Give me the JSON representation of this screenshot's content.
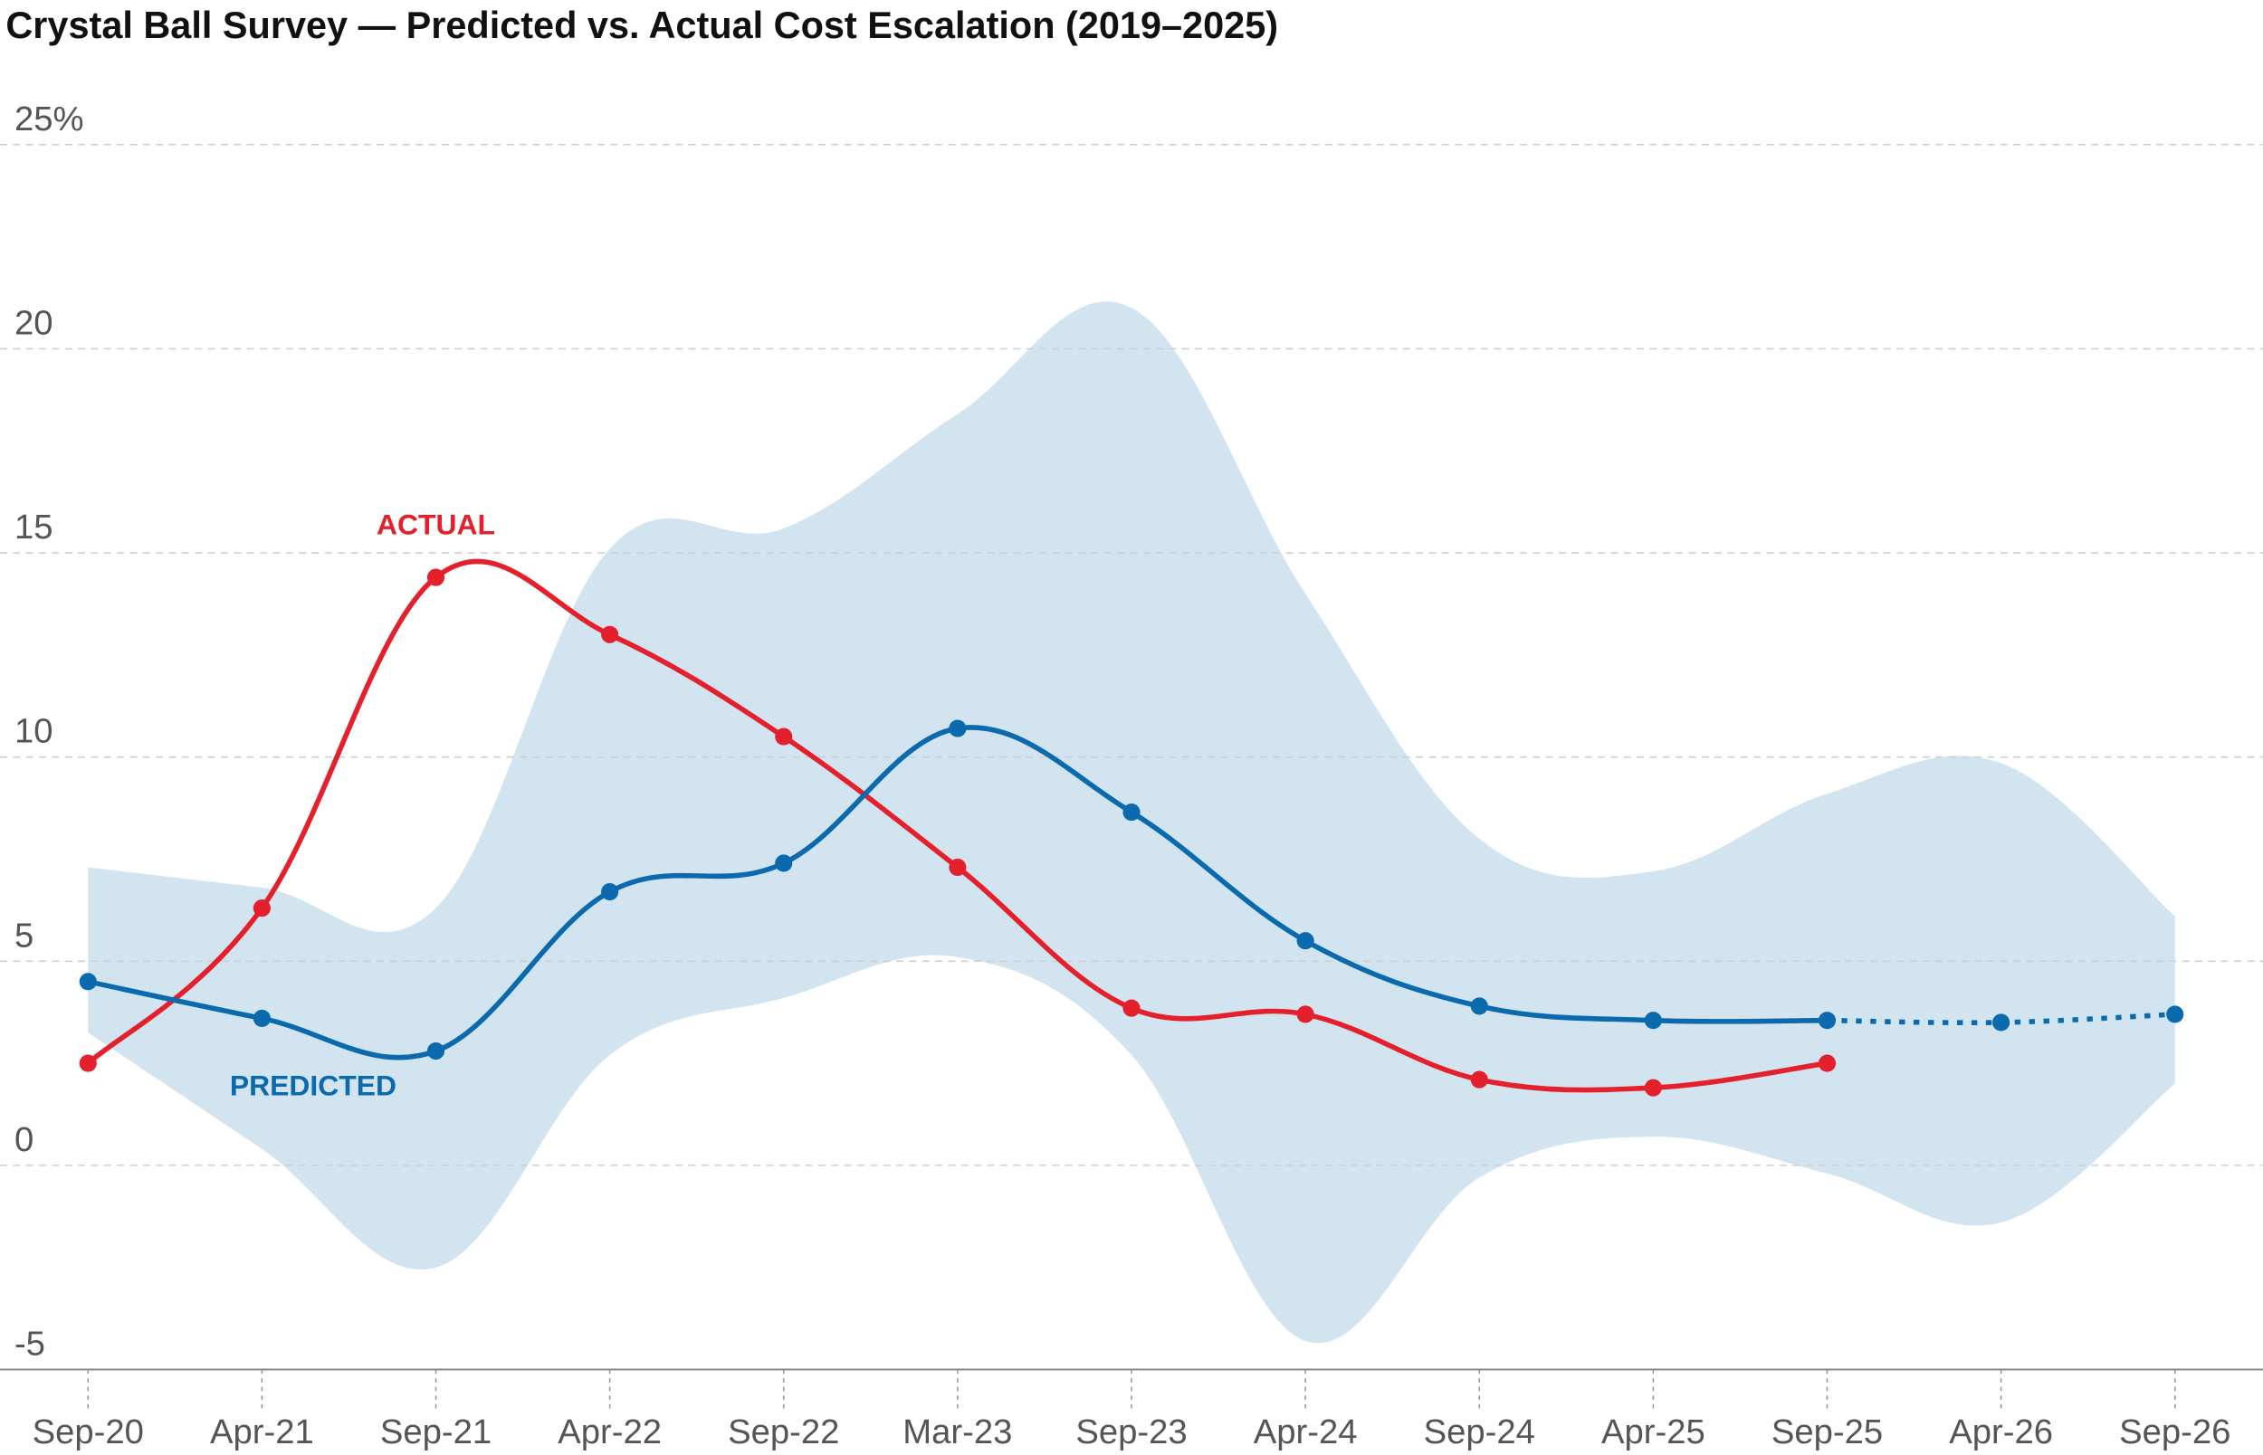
{
  "chart_data": {
    "type": "line",
    "title": "Crystal Ball Survey — Predicted vs. Actual Cost Escalation (2019–2025)",
    "categories": [
      "Sep-20",
      "Apr-21",
      "Sep-21",
      "Apr-22",
      "Sep-22",
      "Mar-23",
      "Sep-23",
      "Apr-24",
      "Sep-24",
      "Apr-25",
      "Sep-25",
      "Apr-26",
      "Sep-26"
    ],
    "ylim": [
      -5,
      26.5
    ],
    "yticks": [
      -5,
      0,
      5,
      10,
      15,
      20,
      {
        "value": 25,
        "label": "25%"
      }
    ],
    "grid": true,
    "band": {
      "color": "#d2e4f0",
      "upper": [
        7.3,
        6.8,
        6.3,
        15.1,
        15.6,
        18.4,
        21.0,
        14.0,
        8.0,
        7.2,
        9.1,
        9.85,
        6.1
      ],
      "lower": [
        3.25,
        0.4,
        -2.5,
        2.7,
        4.1,
        5.1,
        2.7,
        -4.3,
        -0.3,
        0.7,
        -0.2,
        -1.4,
        2.0
      ]
    },
    "series": [
      {
        "name": "ACTUAL",
        "color": "#e3202b",
        "values": [
          2.5,
          6.3,
          14.4,
          13.0,
          10.5,
          7.3,
          3.85,
          3.7,
          2.1,
          1.9,
          2.5,
          null,
          null
        ]
      },
      {
        "name": "PREDICTED",
        "color": "#0a6aad",
        "values": [
          4.5,
          3.6,
          2.8,
          6.7,
          7.4,
          10.7,
          8.65,
          5.5,
          3.9,
          3.55,
          3.55,
          3.5,
          3.7
        ],
        "dashed_from": 10
      }
    ]
  }
}
